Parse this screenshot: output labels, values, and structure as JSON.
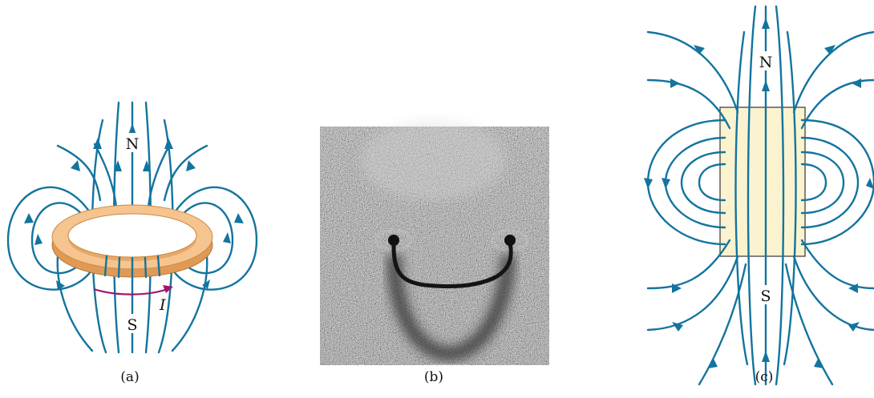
{
  "colors": {
    "field_line": "#13749e",
    "ring_top": "#f6c48e",
    "ring_side": "#e09a56",
    "ring_edge": "#b7772f",
    "current_arrow": "#a0166b",
    "magnet_fill": "#fbf3cf",
    "photo_bg": "#6f6f6f"
  },
  "panels": [
    {
      "caption": "(a)",
      "north_label": "N",
      "south_label": "S",
      "current_label": "I"
    },
    {
      "caption": "(b)"
    },
    {
      "caption": "(c)",
      "north_label": "N",
      "south_label": "S"
    }
  ]
}
